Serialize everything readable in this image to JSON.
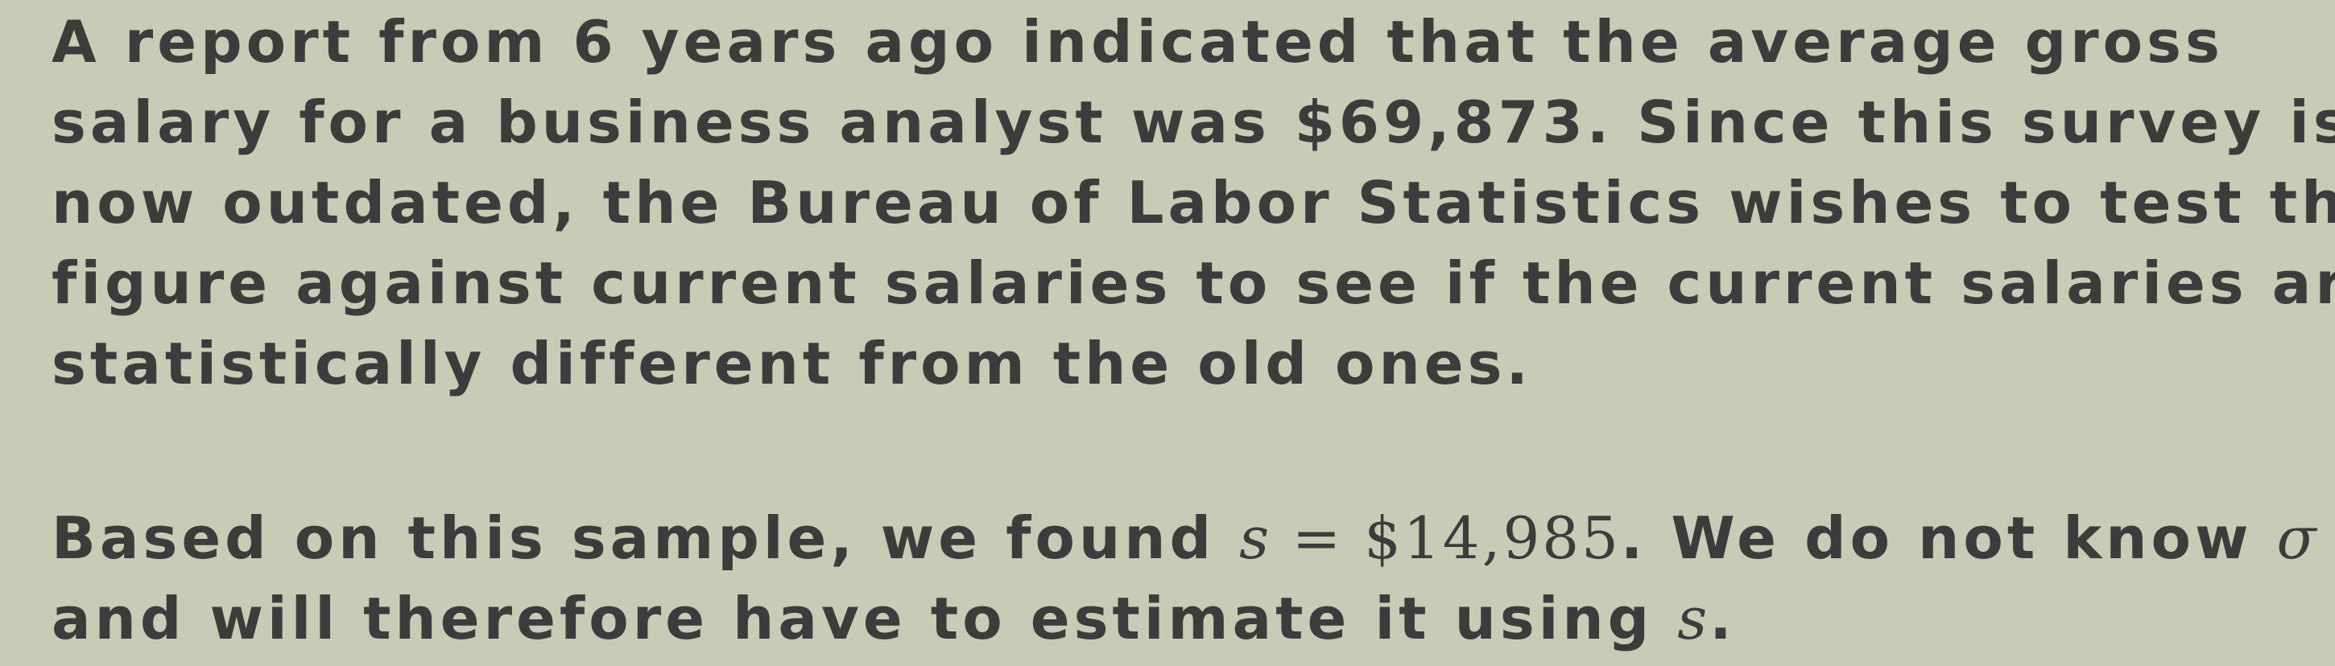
{
  "paragraph1": {
    "lines": [
      "A report from 6 years ago indicated that the average gross",
      "salary for a business analyst was $69,873. Since this survey is",
      "now outdated, the Bureau of Labor Statistics wishes to test this",
      "figure against current salaries to see if the current salaries are",
      "statistically different from the old ones."
    ]
  },
  "paragraph2": {
    "line1_before": "Based on this sample, we found ",
    "math_s": "s",
    "math_equals": " = ",
    "math_value": "$14,985",
    "line1_after": ". We do not know ",
    "math_sigma": "σ",
    "line2_before": "and will therefore have to estimate it using ",
    "line2_after": "."
  }
}
